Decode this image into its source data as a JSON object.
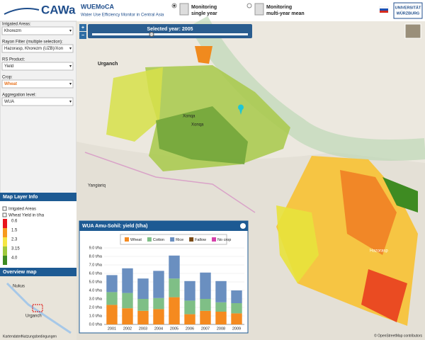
{
  "header": {
    "logo": "CAWa",
    "app_name": "WUEMoCA",
    "app_subtitle": "Water Use Efficiency Monitor in Central Asia",
    "mode_single": {
      "line1": "Monitoring",
      "line2": "single year"
    },
    "mode_multi": {
      "line1": "Monitoring",
      "line2": "multi-year mean"
    },
    "university": {
      "line1": "UNIVERSITÄT",
      "line2": "WÜRZBURG"
    }
  },
  "sidebar": {
    "fields": [
      {
        "label": "Irrigated Areas:",
        "value": "Khorezm"
      },
      {
        "label": "Rayon Filter (multiple selection):",
        "value": "Hazorasp, Khorezm (UZB)/Xon"
      },
      {
        "label": "RS Product:",
        "value": "Yield"
      },
      {
        "label": "Crop:",
        "value": "Wheat"
      },
      {
        "label": "Aggregation level:",
        "value": "WUA"
      }
    ]
  },
  "layer_info": {
    "title": "Map Layer Info",
    "layers": [
      "Irrigated Areas",
      "Wheat Yield in t/ha"
    ],
    "legend": [
      {
        "label": "0.6",
        "color": "#e8141c"
      },
      {
        "label": "1.5",
        "color": "#f79a1e"
      },
      {
        "label": "2.3",
        "color": "#f5e642"
      },
      {
        "label": "3.15",
        "color": "#9fc93c"
      },
      {
        "label": "4.0",
        "color": "#3e8b22"
      }
    ]
  },
  "overview": {
    "title": "Overview map",
    "places": [
      "Nukus",
      "Urganch"
    ],
    "footer": [
      "Kartendaten",
      "Nutzungsbedingungen"
    ]
  },
  "map": {
    "slider_label": "Selected year: 2005",
    "places": [
      "Urganch",
      "Xonqa",
      "Xonqa",
      "Yangiariq",
      "Hazorasp"
    ],
    "attribution": "© OpenStreetMap contributors"
  },
  "chart_data": {
    "type": "bar",
    "stacked": true,
    "title": "WUA Amu-Sohil: yield (t/ha)",
    "categories": [
      "2001",
      "2002",
      "2003",
      "2004",
      "2005",
      "2006",
      "2007",
      "2008",
      "2009"
    ],
    "series": [
      {
        "name": "Wheat",
        "color": "#f58a1f",
        "values": [
          2.3,
          1.9,
          1.6,
          1.8,
          3.2,
          1.2,
          1.6,
          1.5,
          1.3
        ]
      },
      {
        "name": "Cotton",
        "color": "#7fbf86",
        "values": [
          1.5,
          1.8,
          1.4,
          1.3,
          2.2,
          1.6,
          1.4,
          1.1,
          1.2
        ]
      },
      {
        "name": "Rice",
        "color": "#6a8fc0",
        "values": [
          2.0,
          2.9,
          2.4,
          3.2,
          2.7,
          2.3,
          3.1,
          2.5,
          1.5
        ]
      },
      {
        "name": "Fallow",
        "color": "#7a4a14",
        "values": [
          0,
          0,
          0,
          0,
          0,
          0,
          0,
          0,
          0
        ]
      },
      {
        "name": "No crop",
        "color": "#d63faa",
        "values": [
          0,
          0,
          0,
          0,
          0,
          0,
          0,
          0,
          0
        ]
      }
    ],
    "ylim": [
      0,
      9
    ],
    "yticks": [
      {
        "value": 0,
        "label": "0.0 t/ha"
      },
      {
        "value": 1,
        "label": "1.0 t/ha"
      },
      {
        "value": 2,
        "label": "2.0 t/ha"
      },
      {
        "value": 3,
        "label": "3.0 t/ha"
      },
      {
        "value": 4,
        "label": "4.0 t/ha"
      },
      {
        "value": 5,
        "label": "5.0 t/ha"
      },
      {
        "value": 6,
        "label": "6.0 t/ha"
      },
      {
        "value": 7,
        "label": "7.0 t/ha"
      },
      {
        "value": 8,
        "label": "8.0 t/ha"
      },
      {
        "value": 9,
        "label": "9.0 t/ha"
      }
    ],
    "grid": true
  }
}
